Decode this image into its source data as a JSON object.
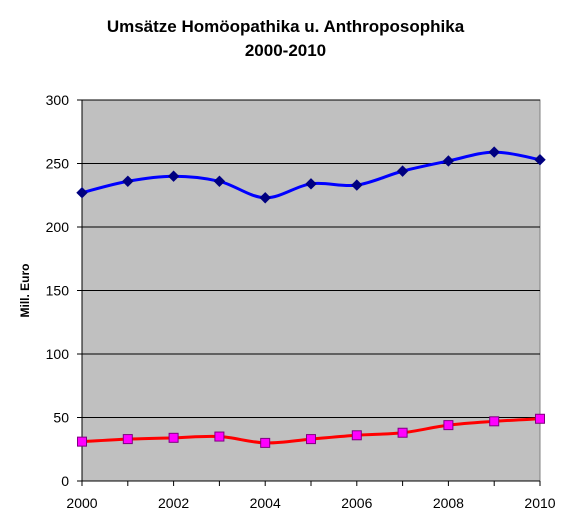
{
  "chart_data": {
    "type": "line",
    "title": "Umsätze Homöopathika u. Anthroposophika",
    "subtitle": "2000-2010",
    "ylabel": "Mill. Euro",
    "xlabel": "",
    "x": [
      2000,
      2001,
      2002,
      2003,
      2004,
      2005,
      2006,
      2007,
      2008,
      2009,
      2010
    ],
    "xticks": [
      "2000",
      "2002",
      "2004",
      "2006",
      "2008",
      "2010"
    ],
    "yticks": [
      "0",
      "50",
      "100",
      "150",
      "200",
      "250",
      "300"
    ],
    "ylim": [
      0,
      300
    ],
    "xlim": [
      2000,
      2010
    ],
    "grid": true,
    "plot_background": "#c0c0c0",
    "series": [
      {
        "values": [
          227,
          236,
          240,
          236,
          223,
          234,
          233,
          244,
          252,
          259,
          253
        ],
        "color": "#0000ff",
        "marker": "diamond",
        "marker_color": "#000080"
      },
      {
        "values": [
          31,
          33,
          34,
          35,
          30,
          33,
          36,
          38,
          44,
          47,
          49
        ],
        "color": "#ff0000",
        "marker": "square",
        "marker_color": "#ff00ff"
      }
    ]
  }
}
